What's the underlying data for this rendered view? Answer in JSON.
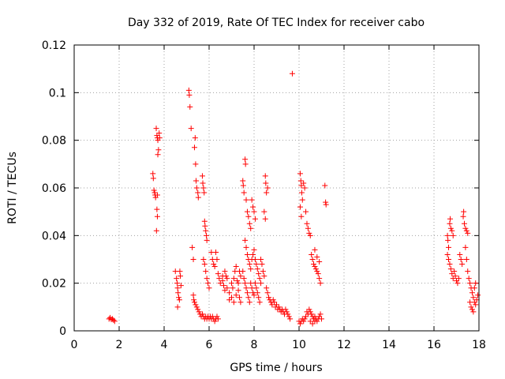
{
  "chart_data": {
    "type": "scatter",
    "title": "Day 332 of 2019, Rate Of TEC Index for receiver cabo",
    "xlabel": "GPS time / hours",
    "ylabel": "ROTI / TECUs",
    "xlim": [
      0,
      18
    ],
    "ylim": [
      0,
      0.12
    ],
    "xticks": [
      0,
      2,
      4,
      6,
      8,
      10,
      12,
      14,
      16,
      18
    ],
    "yticks": [
      0,
      0.02,
      0.04,
      0.06,
      0.08,
      0.1,
      0.12
    ],
    "xtick_labels": [
      "0",
      "2",
      "4",
      "6",
      "8",
      "10",
      "12",
      "14",
      "16",
      "18"
    ],
    "ytick_labels": [
      "0",
      "0.02",
      "0.04",
      "0.06",
      "0.08",
      "0.1",
      "0.12"
    ],
    "grid": true,
    "marker": "+",
    "color": "#ff0000",
    "series": [
      {
        "name": "ROTI",
        "points": [
          [
            1.55,
            0.005
          ],
          [
            1.6,
            0.0055
          ],
          [
            1.65,
            0.0048
          ],
          [
            1.7,
            0.005
          ],
          [
            1.75,
            0.0045
          ],
          [
            1.8,
            0.004
          ],
          [
            3.5,
            0.066
          ],
          [
            3.52,
            0.064
          ],
          [
            3.55,
            0.059
          ],
          [
            3.58,
            0.058
          ],
          [
            3.6,
            0.057
          ],
          [
            3.62,
            0.056
          ],
          [
            3.65,
            0.085
          ],
          [
            3.68,
            0.082
          ],
          [
            3.7,
            0.081
          ],
          [
            3.72,
            0.08
          ],
          [
            3.75,
            0.076
          ],
          [
            3.72,
            0.074
          ],
          [
            3.7,
            0.057
          ],
          [
            3.68,
            0.051
          ],
          [
            3.7,
            0.048
          ],
          [
            3.66,
            0.042
          ],
          [
            3.78,
            0.083
          ],
          [
            3.8,
            0.081
          ],
          [
            4.5,
            0.025
          ],
          [
            4.55,
            0.022
          ],
          [
            4.58,
            0.02
          ],
          [
            4.6,
            0.018
          ],
          [
            4.62,
            0.016
          ],
          [
            4.65,
            0.014
          ],
          [
            4.7,
            0.025
          ],
          [
            4.72,
            0.023
          ],
          [
            4.68,
            0.013
          ],
          [
            4.75,
            0.019
          ],
          [
            4.6,
            0.01
          ],
          [
            5.1,
            0.101
          ],
          [
            5.12,
            0.099
          ],
          [
            5.15,
            0.094
          ],
          [
            5.2,
            0.085
          ],
          [
            5.25,
            0.035
          ],
          [
            5.3,
            0.03
          ],
          [
            5.35,
            0.077
          ],
          [
            5.38,
            0.081
          ],
          [
            5.4,
            0.07
          ],
          [
            5.42,
            0.063
          ],
          [
            5.45,
            0.06
          ],
          [
            5.5,
            0.058
          ],
          [
            5.52,
            0.056
          ],
          [
            5.3,
            0.015
          ],
          [
            5.32,
            0.013
          ],
          [
            5.35,
            0.012
          ],
          [
            5.4,
            0.011
          ],
          [
            5.45,
            0.01
          ],
          [
            5.5,
            0.009
          ],
          [
            5.55,
            0.008
          ],
          [
            5.6,
            0.007
          ],
          [
            5.65,
            0.006
          ],
          [
            5.7,
            0.065
          ],
          [
            5.72,
            0.062
          ],
          [
            5.75,
            0.06
          ],
          [
            5.78,
            0.058
          ],
          [
            5.8,
            0.046
          ],
          [
            5.82,
            0.044
          ],
          [
            5.85,
            0.042
          ],
          [
            5.88,
            0.04
          ],
          [
            5.9,
            0.038
          ],
          [
            5.75,
            0.03
          ],
          [
            5.8,
            0.028
          ],
          [
            5.85,
            0.025
          ],
          [
            5.9,
            0.022
          ],
          [
            5.95,
            0.02
          ],
          [
            6.0,
            0.018
          ],
          [
            5.7,
            0.007
          ],
          [
            5.75,
            0.006
          ],
          [
            5.8,
            0.005
          ],
          [
            5.85,
            0.006
          ],
          [
            5.9,
            0.005
          ],
          [
            5.95,
            0.006
          ],
          [
            6.0,
            0.005
          ],
          [
            6.05,
            0.006
          ],
          [
            6.1,
            0.005
          ],
          [
            6.15,
            0.006
          ],
          [
            6.2,
            0.005
          ],
          [
            6.25,
            0.004
          ],
          [
            6.3,
            0.005
          ],
          [
            6.35,
            0.006
          ],
          [
            6.4,
            0.005
          ],
          [
            6.1,
            0.033
          ],
          [
            6.15,
            0.03
          ],
          [
            6.2,
            0.028
          ],
          [
            6.25,
            0.027
          ],
          [
            6.3,
            0.033
          ],
          [
            6.35,
            0.03
          ],
          [
            6.4,
            0.024
          ],
          [
            6.45,
            0.022
          ],
          [
            6.5,
            0.02
          ],
          [
            6.6,
            0.023
          ],
          [
            6.7,
            0.025
          ],
          [
            6.8,
            0.018
          ],
          [
            6.9,
            0.016
          ],
          [
            7.0,
            0.014
          ],
          [
            7.1,
            0.012
          ],
          [
            7.2,
            0.015
          ],
          [
            7.3,
            0.02
          ],
          [
            7.35,
            0.025
          ],
          [
            7.4,
            0.023
          ],
          [
            6.6,
            0.021
          ],
          [
            6.65,
            0.019
          ],
          [
            6.7,
            0.017
          ],
          [
            6.75,
            0.023
          ],
          [
            6.8,
            0.022
          ],
          [
            6.9,
            0.013
          ],
          [
            7.0,
            0.02
          ],
          [
            7.05,
            0.018
          ],
          [
            7.1,
            0.022
          ],
          [
            7.15,
            0.025
          ],
          [
            7.2,
            0.027
          ],
          [
            7.25,
            0.021
          ],
          [
            7.3,
            0.017
          ],
          [
            7.35,
            0.014
          ],
          [
            7.4,
            0.012
          ],
          [
            7.5,
            0.063
          ],
          [
            7.52,
            0.061
          ],
          [
            7.55,
            0.058
          ],
          [
            7.6,
            0.072
          ],
          [
            7.62,
            0.07
          ],
          [
            7.65,
            0.055
          ],
          [
            7.7,
            0.05
          ],
          [
            7.75,
            0.048
          ],
          [
            7.8,
            0.045
          ],
          [
            7.85,
            0.043
          ],
          [
            7.9,
            0.055
          ],
          [
            7.95,
            0.052
          ],
          [
            8.0,
            0.05
          ],
          [
            8.05,
            0.047
          ],
          [
            7.6,
            0.038
          ],
          [
            7.65,
            0.035
          ],
          [
            7.7,
            0.032
          ],
          [
            7.75,
            0.03
          ],
          [
            7.8,
            0.028
          ],
          [
            7.85,
            0.026
          ],
          [
            7.9,
            0.03
          ],
          [
            7.95,
            0.032
          ],
          [
            8.0,
            0.034
          ],
          [
            8.05,
            0.03
          ],
          [
            8.1,
            0.028
          ],
          [
            8.15,
            0.026
          ],
          [
            8.2,
            0.024
          ],
          [
            8.25,
            0.022
          ],
          [
            8.3,
            0.02
          ],
          [
            7.5,
            0.025
          ],
          [
            7.55,
            0.022
          ],
          [
            7.6,
            0.02
          ],
          [
            7.65,
            0.018
          ],
          [
            7.7,
            0.016
          ],
          [
            7.75,
            0.014
          ],
          [
            7.8,
            0.012
          ],
          [
            7.85,
            0.02
          ],
          [
            7.9,
            0.018
          ],
          [
            7.95,
            0.016
          ],
          [
            8.0,
            0.015
          ],
          [
            8.05,
            0.02
          ],
          [
            8.1,
            0.018
          ],
          [
            8.15,
            0.016
          ],
          [
            8.2,
            0.014
          ],
          [
            8.25,
            0.012
          ],
          [
            8.3,
            0.03
          ],
          [
            8.35,
            0.028
          ],
          [
            8.4,
            0.025
          ],
          [
            8.45,
            0.023
          ],
          [
            8.5,
            0.065
          ],
          [
            8.52,
            0.062
          ],
          [
            8.55,
            0.058
          ],
          [
            8.6,
            0.06
          ],
          [
            8.45,
            0.05
          ],
          [
            8.5,
            0.047
          ],
          [
            8.55,
            0.018
          ],
          [
            8.6,
            0.016
          ],
          [
            8.65,
            0.014
          ],
          [
            8.7,
            0.013
          ],
          [
            8.75,
            0.012
          ],
          [
            8.8,
            0.011
          ],
          [
            8.85,
            0.013
          ],
          [
            8.9,
            0.012
          ],
          [
            8.95,
            0.01
          ],
          [
            9.0,
            0.011
          ],
          [
            9.05,
            0.009
          ],
          [
            9.1,
            0.01
          ],
          [
            9.15,
            0.009
          ],
          [
            9.2,
            0.008
          ],
          [
            9.25,
            0.009
          ],
          [
            9.3,
            0.008
          ],
          [
            9.35,
            0.007
          ],
          [
            9.4,
            0.009
          ],
          [
            9.45,
            0.008
          ],
          [
            9.5,
            0.007
          ],
          [
            9.55,
            0.006
          ],
          [
            9.6,
            0.005
          ],
          [
            9.7,
            0.108
          ],
          [
            10.05,
            0.066
          ],
          [
            10.08,
            0.063
          ],
          [
            10.1,
            0.061
          ],
          [
            10.12,
            0.058
          ],
          [
            10.15,
            0.055
          ],
          [
            10.05,
            0.052
          ],
          [
            10.1,
            0.048
          ],
          [
            10.2,
            0.062
          ],
          [
            10.25,
            0.06
          ],
          [
            10.3,
            0.05
          ],
          [
            10.35,
            0.045
          ],
          [
            10.4,
            0.043
          ],
          [
            10.45,
            0.041
          ],
          [
            10.5,
            0.04
          ],
          [
            10.55,
            0.032
          ],
          [
            10.6,
            0.03
          ],
          [
            10.65,
            0.028
          ],
          [
            10.7,
            0.027
          ],
          [
            10.75,
            0.026
          ],
          [
            10.8,
            0.025
          ],
          [
            10.85,
            0.024
          ],
          [
            10.9,
            0.022
          ],
          [
            10.95,
            0.02
          ],
          [
            10.7,
            0.034
          ],
          [
            10.8,
            0.031
          ],
          [
            10.9,
            0.029
          ],
          [
            10.0,
            0.004
          ],
          [
            10.05,
            0.003
          ],
          [
            10.1,
            0.004
          ],
          [
            10.15,
            0.005
          ],
          [
            10.2,
            0.004
          ],
          [
            10.25,
            0.005
          ],
          [
            10.3,
            0.006
          ],
          [
            10.35,
            0.008
          ],
          [
            10.4,
            0.007
          ],
          [
            10.45,
            0.009
          ],
          [
            10.5,
            0.008
          ],
          [
            10.55,
            0.007
          ],
          [
            10.6,
            0.006
          ],
          [
            10.65,
            0.005
          ],
          [
            10.7,
            0.006
          ],
          [
            10.75,
            0.005
          ],
          [
            10.8,
            0.004
          ],
          [
            10.85,
            0.005
          ],
          [
            10.9,
            0.006
          ],
          [
            10.95,
            0.007
          ],
          [
            11.0,
            0.005
          ],
          [
            10.5,
            0.004
          ],
          [
            10.6,
            0.003
          ],
          [
            10.7,
            0.004
          ],
          [
            11.15,
            0.061
          ],
          [
            11.18,
            0.054
          ],
          [
            11.2,
            0.053
          ],
          [
            16.6,
            0.04
          ],
          [
            16.62,
            0.038
          ],
          [
            16.65,
            0.035
          ],
          [
            16.7,
            0.045
          ],
          [
            16.72,
            0.047
          ],
          [
            16.75,
            0.043
          ],
          [
            16.8,
            0.042
          ],
          [
            16.85,
            0.04
          ],
          [
            16.6,
            0.032
          ],
          [
            16.65,
            0.03
          ],
          [
            16.7,
            0.028
          ],
          [
            16.75,
            0.026
          ],
          [
            16.8,
            0.024
          ],
          [
            16.85,
            0.022
          ],
          [
            16.9,
            0.025
          ],
          [
            16.95,
            0.023
          ],
          [
            17.0,
            0.021
          ],
          [
            17.05,
            0.02
          ],
          [
            17.1,
            0.022
          ],
          [
            17.15,
            0.032
          ],
          [
            17.2,
            0.03
          ],
          [
            17.25,
            0.028
          ],
          [
            17.3,
            0.048
          ],
          [
            17.32,
            0.05
          ],
          [
            17.35,
            0.045
          ],
          [
            17.4,
            0.043
          ],
          [
            17.45,
            0.042
          ],
          [
            17.5,
            0.041
          ],
          [
            17.4,
            0.035
          ],
          [
            17.45,
            0.03
          ],
          [
            17.5,
            0.025
          ],
          [
            17.55,
            0.022
          ],
          [
            17.6,
            0.02
          ],
          [
            17.65,
            0.018
          ],
          [
            17.7,
            0.016
          ],
          [
            17.75,
            0.014
          ],
          [
            17.8,
            0.012
          ],
          [
            17.85,
            0.011
          ],
          [
            17.9,
            0.013
          ],
          [
            17.95,
            0.015
          ],
          [
            17.6,
            0.012
          ],
          [
            17.65,
            0.01
          ],
          [
            17.7,
            0.009
          ],
          [
            17.75,
            0.008
          ],
          [
            17.8,
            0.018
          ],
          [
            17.85,
            0.02
          ]
        ]
      }
    ]
  }
}
